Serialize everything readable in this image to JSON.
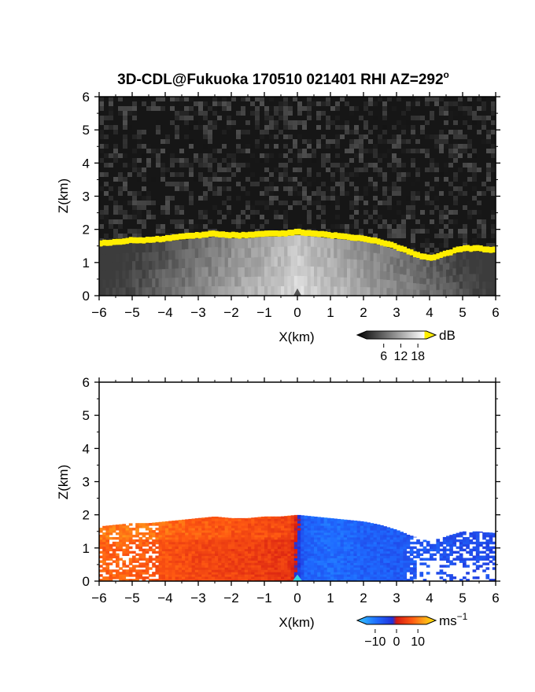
{
  "title_main": "3D-CDL@Fukuoka 170510 021401 RHI AZ=292",
  "title_sup": "o",
  "colors": {
    "reflectivity_highlight": "#ffee00",
    "background_dark": "#161616",
    "velocity_scale": [
      "#33c8ff",
      "#1f6cff",
      "#2230d8",
      "#d41a12",
      "#ff5a12",
      "#ffa51a",
      "#ffe800"
    ]
  },
  "chart_data": [
    {
      "type": "heatmap",
      "name": "reflectivity",
      "xlabel": "X(km)",
      "ylabel": "Z(km)",
      "xlim": [
        -6,
        6
      ],
      "ylim": [
        0,
        6
      ],
      "xticks": [
        "-6",
        "-5",
        "-4",
        "-3",
        "-2",
        "-1",
        "0",
        "1",
        "2",
        "3",
        "4",
        "5",
        "6"
      ],
      "yticks": [
        "0",
        "1",
        "2",
        "3",
        "4",
        "5",
        "6"
      ],
      "colorbar": {
        "unit": "dB",
        "ticks": [
          "6",
          "12",
          "18"
        ],
        "range": [
          0,
          21
        ]
      },
      "layer_top_km": {
        "x": [
          -6,
          -5.5,
          -5,
          -4.5,
          -4,
          -3.5,
          -3,
          -2.5,
          -2,
          -1.5,
          -1,
          -0.5,
          0,
          0.5,
          1,
          1.5,
          2,
          2.5,
          3,
          3.5,
          4,
          4.5,
          5,
          5.5,
          6
        ],
        "z": [
          1.65,
          1.7,
          1.75,
          1.75,
          1.8,
          1.85,
          1.9,
          1.95,
          1.9,
          1.9,
          1.95,
          1.95,
          2.0,
          1.95,
          1.9,
          1.85,
          1.8,
          1.7,
          1.55,
          1.35,
          1.2,
          1.35,
          1.5,
          1.5,
          1.45
        ]
      }
    },
    {
      "type": "heatmap",
      "name": "doppler_velocity",
      "xlabel": "X(km)",
      "ylabel": "Z(km)",
      "xlim": [
        -6,
        6
      ],
      "ylim": [
        0,
        6
      ],
      "xticks": [
        "-6",
        "-5",
        "-4",
        "-3",
        "-2",
        "-1",
        "0",
        "1",
        "2",
        "3",
        "4",
        "5",
        "6"
      ],
      "yticks": [
        "0",
        "1",
        "2",
        "3",
        "4",
        "5",
        "6"
      ],
      "colorbar": {
        "unit": "ms",
        "unit_sup": "−1",
        "ticks": [
          "−10",
          "0",
          "10"
        ],
        "range": [
          -14,
          14
        ]
      },
      "velocity_at_x_ms": {
        "x": [
          -6,
          -5,
          -4,
          -3,
          -2,
          -1,
          -0.2,
          0.2,
          1,
          2,
          3,
          4,
          5,
          6
        ],
        "v": [
          6,
          6,
          5,
          4,
          3.5,
          3,
          2.5,
          -6,
          -7,
          -6,
          -5.5,
          -5,
          -4,
          -3.5
        ]
      }
    }
  ]
}
